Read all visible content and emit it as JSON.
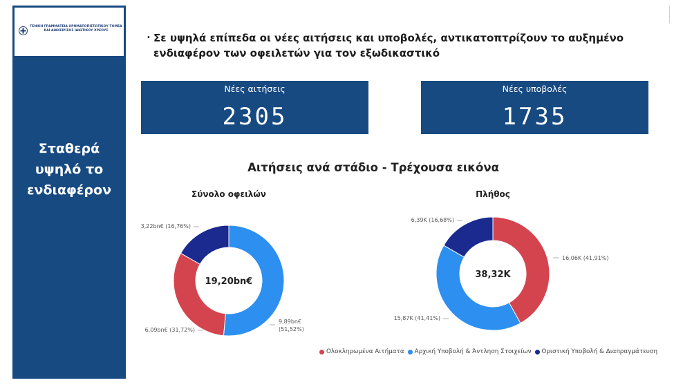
{
  "logo": {
    "line1": "ΓΕΝΙΚΗ ΓΡΑΜΜΑΤΕΙΑ ΧΡΗΜΑΤΟΠΙΣΤΩΤΙΚΟΥ ΤΟΜΕΑ",
    "line2": "ΚΑΙ ΔΙΑΧΕΙΡΙΣΗΣ ΙΔΙΩΤΙΚΟΥ ΧΡΕΟΥΣ"
  },
  "sidebar": {
    "title_lines": [
      "Σταθερά",
      "υψηλό το",
      "ενδιαφέρον"
    ]
  },
  "headline": {
    "bullet": "•",
    "line1": "Σε υψηλά επίπεδα οι νέες αιτήσεις και υποβολές, αντικατοπτρίζουν το αυξημένο",
    "line2": "ενδιαφέρον των οφειλετών για τον εξωδικαστικό"
  },
  "kpis": [
    {
      "label": "Νέες αιτήσεις",
      "value": "2305"
    },
    {
      "label": "Νέες υποβολές",
      "value": "1735"
    }
  ],
  "section_title": "Αιτήσεις ανά στάδιο - Τρέχουσα εικόνα",
  "colors": {
    "red": "#d4444f",
    "blue": "#2d8ff0",
    "navy": "#1a2a8f",
    "panel": "#184a82"
  },
  "chart_data": [
    {
      "type": "pie",
      "donut": true,
      "title": "Σύνολο οφειλών",
      "center_label": "19,20bn€",
      "categories": [
        "Ολοκληρωμένα Αιτήματα",
        "Αρχική Υποβολή & Άντληση Στοιχείων",
        "Οριστική Υποβολή & Διαπραγμάτευση"
      ],
      "values": [
        6.09,
        9.89,
        3.22
      ],
      "percent": [
        31.72,
        51.52,
        16.76
      ],
      "data_labels": [
        "6,09bn€ (31,72%)",
        "9,89bn€ (51,52%)",
        "3,22bn€ (16,76%)"
      ]
    },
    {
      "type": "pie",
      "donut": true,
      "title": "Πλήθος",
      "center_label": "38,32K",
      "categories": [
        "Ολοκληρωμένα Αιτήματα",
        "Αρχική Υποβολή & Άντληση Στοιχείων",
        "Οριστική Υποβολή & Διαπραγμάτευση"
      ],
      "values": [
        16.06,
        15.87,
        6.39
      ],
      "percent": [
        41.91,
        41.41,
        16.68
      ],
      "data_labels": [
        "16,06K (41,91%)",
        "15,87K (41,41%)",
        "6,39K (16,68%)"
      ]
    }
  ],
  "legend": [
    {
      "label": "Ολοκληρωμένα Αιτήματα",
      "color": "#d4444f"
    },
    {
      "label": "Αρχική Υποβολή & Άντληση Στοιχείων",
      "color": "#2d8ff0"
    },
    {
      "label": "Οριστική Υποβολή & Διαπραγμάτευση",
      "color": "#1a2a8f"
    }
  ]
}
